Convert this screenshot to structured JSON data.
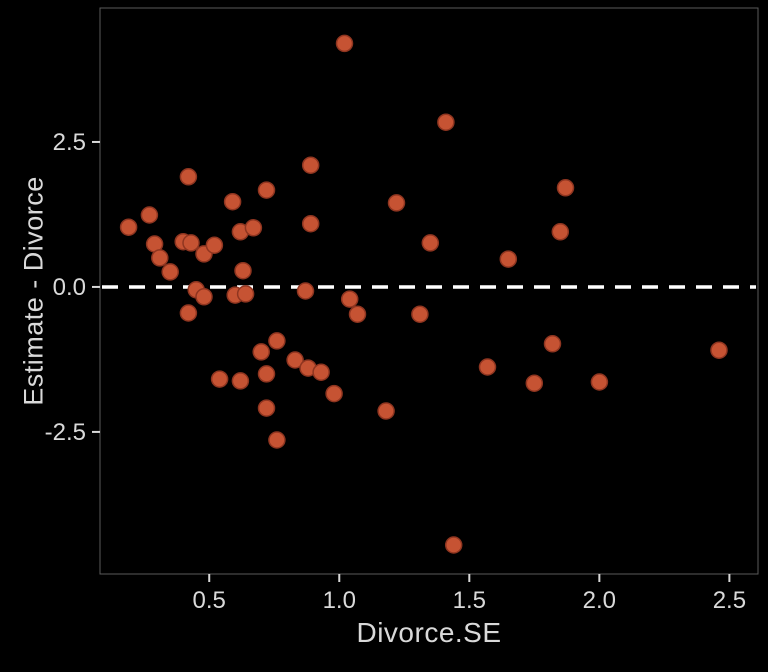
{
  "colors": {
    "background": "#000000",
    "point_fill": "#C65333",
    "point_stroke": "#8F3520",
    "dashed_line": "#FFFFFF",
    "axis_text": "#D9D9D9",
    "frame": "#5A5A5A"
  },
  "chart_data": {
    "type": "scatter",
    "title": "",
    "xlabel": "Divorce.SE",
    "ylabel": "Estimate - Divorce",
    "xlim": [
      0.08,
      2.61
    ],
    "ylim": [
      -4.95,
      4.81
    ],
    "grid": false,
    "legend": false,
    "x_ticks": {
      "values": [
        0.5,
        1.0,
        1.5,
        2.0,
        2.5
      ],
      "labels": [
        "0.5",
        "1.0",
        "1.5",
        "2.0",
        "2.5"
      ]
    },
    "y_ticks": {
      "values": [
        -2.5,
        0.0,
        2.5
      ],
      "labels": [
        "-2.5",
        "0.0",
        "2.5"
      ]
    },
    "reference_line": {
      "y": 0.0,
      "style": "dashed",
      "color": "#FFFFFF"
    },
    "points": [
      [
        0.19,
        1.03
      ],
      [
        0.27,
        1.24
      ],
      [
        0.29,
        0.74
      ],
      [
        0.31,
        0.5
      ],
      [
        0.35,
        0.26
      ],
      [
        0.4,
        0.78
      ],
      [
        0.42,
        1.9
      ],
      [
        0.43,
        0.76
      ],
      [
        0.42,
        -0.45
      ],
      [
        0.45,
        -0.05
      ],
      [
        0.48,
        0.57
      ],
      [
        0.48,
        -0.17
      ],
      [
        0.52,
        0.72
      ],
      [
        0.54,
        -1.59
      ],
      [
        0.59,
        1.47
      ],
      [
        0.6,
        -0.14
      ],
      [
        0.62,
        0.95
      ],
      [
        0.62,
        -1.62
      ],
      [
        0.63,
        0.28
      ],
      [
        0.64,
        -0.12
      ],
      [
        0.67,
        1.02
      ],
      [
        0.7,
        -1.12
      ],
      [
        0.72,
        1.67
      ],
      [
        0.72,
        -1.5
      ],
      [
        0.72,
        -2.09
      ],
      [
        0.76,
        -0.93
      ],
      [
        0.76,
        -2.64
      ],
      [
        0.83,
        -1.26
      ],
      [
        0.87,
        -0.07
      ],
      [
        0.88,
        -1.4
      ],
      [
        0.89,
        2.1
      ],
      [
        0.89,
        1.09
      ],
      [
        0.93,
        -1.47
      ],
      [
        0.98,
        -1.84
      ],
      [
        1.02,
        4.2
      ],
      [
        1.04,
        -0.21
      ],
      [
        1.07,
        -0.47
      ],
      [
        1.18,
        -2.14
      ],
      [
        1.22,
        1.45
      ],
      [
        1.31,
        -0.47
      ],
      [
        1.35,
        0.76
      ],
      [
        1.41,
        2.84
      ],
      [
        1.44,
        -4.45
      ],
      [
        1.57,
        -1.38
      ],
      [
        1.65,
        0.48
      ],
      [
        1.75,
        -1.66
      ],
      [
        1.82,
        -0.98
      ],
      [
        1.85,
        0.95
      ],
      [
        1.87,
        1.71
      ],
      [
        2.0,
        -1.64
      ],
      [
        2.46,
        -1.09
      ]
    ]
  }
}
